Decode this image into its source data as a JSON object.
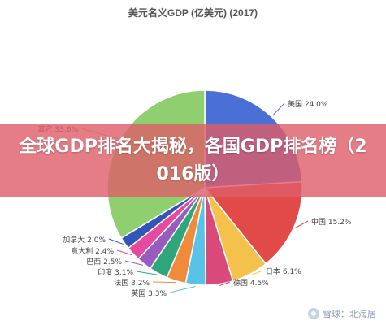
{
  "chart_data": {
    "type": "pie",
    "title": "美元名义GDP (亿美元) (2017)",
    "slices": [
      {
        "label": "美国 24.0%",
        "value": 24.0,
        "color": "#4a6fd6"
      },
      {
        "label": "中国 15.2%",
        "value": 15.2,
        "color": "#e24a4a"
      },
      {
        "label": "日本 6.1%",
        "value": 6.1,
        "color": "#f4c24c"
      },
      {
        "label": "德国 4.5%",
        "value": 4.5,
        "color": "#d94a7a"
      },
      {
        "label": "英国 3.3%",
        "value": 3.3,
        "color": "#58c3e6"
      },
      {
        "label": "法国 3.2%",
        "value": 3.2,
        "color": "#f08a3c"
      },
      {
        "label": "印度 3.1%",
        "value": 3.1,
        "color": "#2ea67b"
      },
      {
        "label": "巴西 2.5%",
        "value": 2.5,
        "color": "#9a5bc0"
      },
      {
        "label": "意大利 2.4%",
        "value": 2.4,
        "color": "#e64aa0"
      },
      {
        "label": "加拿大 2.0%",
        "value": 2.0,
        "color": "#3155b8"
      },
      {
        "label": "其它 33.6%",
        "value": 33.6,
        "color": "#8fcf6f"
      }
    ]
  },
  "banner": {
    "text": "全球GDP排名大揭秘，各国GDP排名榜（2016版）"
  },
  "watermark": {
    "text": "雪球：北海居"
  }
}
